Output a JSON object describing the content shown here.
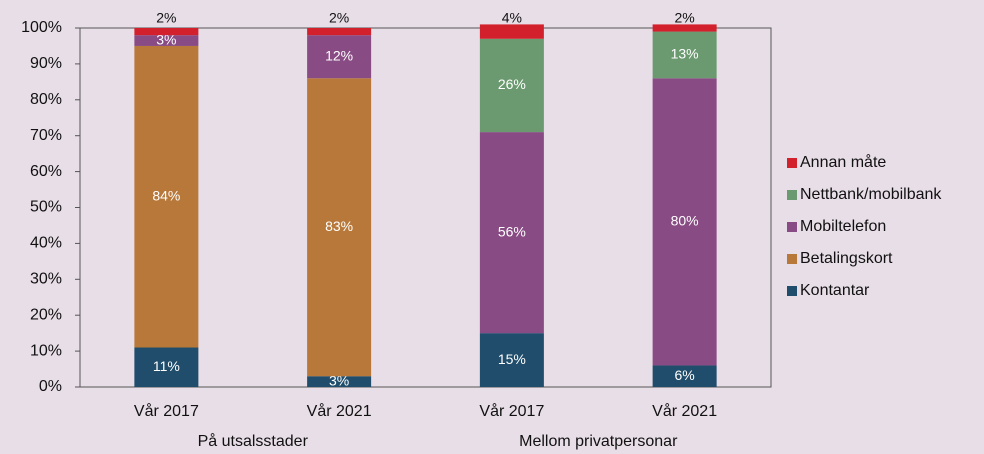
{
  "chart_data": {
    "type": "stacked-bar",
    "categories": [
      "Vår 2017",
      "Vår 2021",
      "Vår 2017",
      "Vår 2021"
    ],
    "groups": [
      {
        "label": "På utsalsstader",
        "members": [
          0,
          1
        ]
      },
      {
        "label": "Mellom privatpersonar",
        "members": [
          2,
          3
        ]
      }
    ],
    "series": [
      {
        "name": "Kontantar",
        "color": "#1f4d6b",
        "values": [
          11,
          3,
          15,
          6
        ],
        "value_labels": [
          "11%",
          "3%",
          "15%",
          "6%"
        ]
      },
      {
        "name": "Betalingskort",
        "color": "#b8783a",
        "values": [
          84,
          83,
          0,
          0
        ],
        "value_labels": [
          "84%",
          "83%",
          null,
          null
        ]
      },
      {
        "name": "Mobiltelefon",
        "color": "#884b84",
        "values": [
          3,
          12,
          56,
          80
        ],
        "value_labels": [
          "3%",
          "12%",
          "56%",
          "80%"
        ]
      },
      {
        "name": "Nettbank/mobilbank",
        "color": "#6b9a70",
        "values": [
          0,
          0,
          26,
          13
        ],
        "value_labels": [
          null,
          null,
          "26%",
          "13%"
        ]
      },
      {
        "name": "Annan måte",
        "color": "#d2202d",
        "values": [
          2,
          2,
          4,
          2
        ],
        "value_labels": [
          "2%",
          "2%",
          "4%",
          "2%"
        ]
      }
    ],
    "ylim": [
      0,
      100
    ],
    "yticks": [
      {
        "value": 0,
        "label": "0%"
      },
      {
        "value": 10,
        "label": "10%"
      },
      {
        "value": 20,
        "label": "20%"
      },
      {
        "value": 30,
        "label": "30%"
      },
      {
        "value": 40,
        "label": "40%"
      },
      {
        "value": 50,
        "label": "50%"
      },
      {
        "value": 60,
        "label": "60%"
      },
      {
        "value": 70,
        "label": "70%"
      },
      {
        "value": 80,
        "label": "80%"
      },
      {
        "value": 90,
        "label": "90%"
      },
      {
        "value": 100,
        "label": "100%"
      }
    ],
    "legend": "right"
  }
}
